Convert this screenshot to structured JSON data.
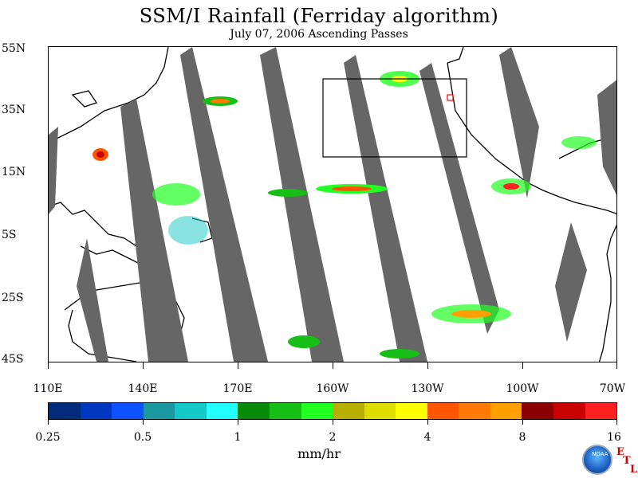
{
  "header": {
    "title": "SSM/I Rainfall (Ferriday algorithm)",
    "subtitle": "July 07, 2006  Ascending Passes"
  },
  "map": {
    "lat_labels": [
      "55N",
      "35N",
      "15N",
      "5S",
      "25S",
      "45S"
    ],
    "lon_labels": [
      "110E",
      "140E",
      "170E",
      "160W",
      "130W",
      "100W",
      "70W"
    ],
    "colors": {
      "swath_gap": "#666666",
      "box": "#000000",
      "marker": "#ff0000"
    }
  },
  "colorbar": {
    "colors": [
      "#002a7a",
      "#0037c0",
      "#0e52ff",
      "#1a9aa0",
      "#14c8c8",
      "#22ffff",
      "#0a8a0a",
      "#16bf16",
      "#22ff22",
      "#b8b000",
      "#dddd00",
      "#ffff00",
      "#ff5500",
      "#ff7a00",
      "#ffa000",
      "#8a0000",
      "#c80000",
      "#ff2020"
    ],
    "labels": [
      "0.25",
      "0.5",
      "1",
      "2",
      "4",
      "8",
      "16"
    ],
    "units": "mm/hr"
  },
  "logo": {
    "name": "NOAA",
    "etl": [
      "E",
      "T",
      "L"
    ]
  }
}
